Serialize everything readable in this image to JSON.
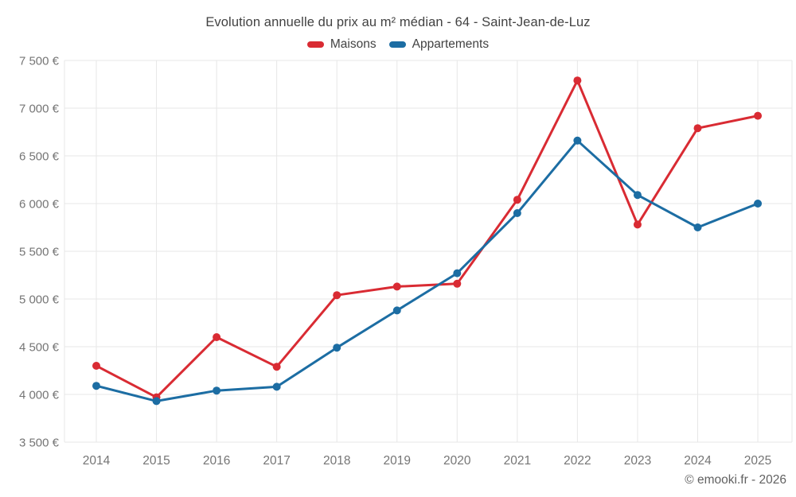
{
  "page": {
    "title": "Evolution annuelle du prix au m² médian - 64 - Saint-Jean-de-Luz",
    "footer": "© emooki.fr - 2026"
  },
  "legend": {
    "items": [
      {
        "label": "Maisons",
        "color": "#d92b33"
      },
      {
        "label": "Appartements",
        "color": "#1c6da3"
      }
    ]
  },
  "chart_data": {
    "type": "line",
    "title": "Evolution annuelle du prix au m² médian - 64 - Saint-Jean-de-Luz",
    "xlabel": "",
    "ylabel": "",
    "categories": [
      "2014",
      "2015",
      "2016",
      "2017",
      "2018",
      "2019",
      "2020",
      "2021",
      "2022",
      "2023",
      "2024",
      "2025"
    ],
    "series": [
      {
        "name": "Maisons",
        "color": "#d92b33",
        "values": [
          4300,
          3970,
          4600,
          4290,
          5040,
          5130,
          5160,
          6040,
          7290,
          5780,
          6790,
          6920
        ]
      },
      {
        "name": "Appartements",
        "color": "#1c6da3",
        "values": [
          4090,
          3930,
          4040,
          4080,
          4490,
          4880,
          5270,
          5900,
          6660,
          6090,
          5750,
          6000
        ]
      }
    ],
    "ylim": [
      3500,
      7500
    ],
    "y_ticks": [
      {
        "value": 3500,
        "label": "3 500 €"
      },
      {
        "value": 4000,
        "label": "4 000 €"
      },
      {
        "value": 4500,
        "label": "4 500 €"
      },
      {
        "value": 5000,
        "label": "5 000 €"
      },
      {
        "value": 5500,
        "label": "5 500 €"
      },
      {
        "value": 6000,
        "label": "6 000 €"
      },
      {
        "value": 6500,
        "label": "6 500 €"
      },
      {
        "value": 7000,
        "label": "7 000 €"
      },
      {
        "value": 7500,
        "label": "7 500 €"
      }
    ],
    "grid": true,
    "legend_position": "top",
    "footer": "© emooki.fr - 2026",
    "colors": {
      "gridline": "#e7e7e7",
      "tick_text": "#757575",
      "title_text": "#424242",
      "footer_text": "#616161"
    }
  }
}
